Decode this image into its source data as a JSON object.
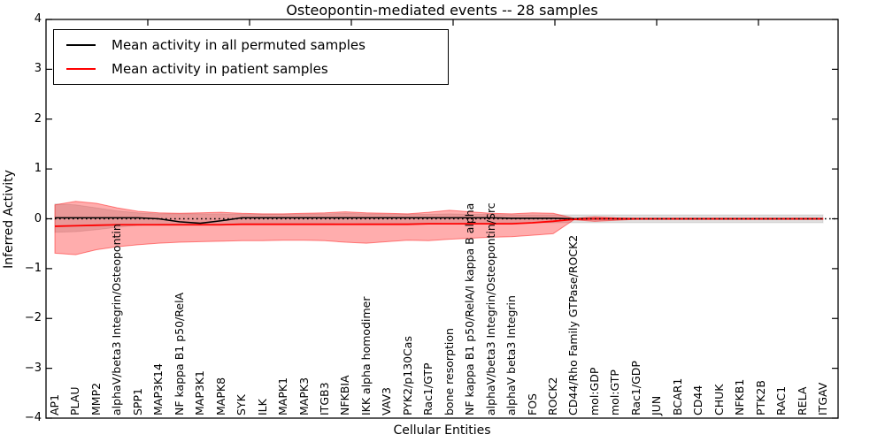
{
  "chart_data": {
    "type": "line",
    "title": "Osteopontin-mediated events -- 28 samples",
    "xlabel": "Cellular Entities",
    "ylabel": "Inferred Activity",
    "ylim": [
      -4,
      4
    ],
    "ytick_labels": [
      "4",
      "3",
      "2",
      "1",
      "0",
      "−1",
      "−2",
      "−3",
      "−4"
    ],
    "yticks": [
      4,
      3,
      2,
      1,
      0,
      -1,
      -2,
      -3,
      -4
    ],
    "grid": false,
    "legend_position": "upper left",
    "categories": [
      "AP1",
      "PLAU",
      "MMP2",
      "alphaV/beta3 Integrin/Osteopontin",
      "SPP1",
      "MAP3K14",
      "NF kappa B1 p50/RelA",
      "MAP3K1",
      "MAPK8",
      "SYK",
      "ILK",
      "MAPK1",
      "MAPK3",
      "ITGB3",
      "NFKBIA",
      "IKK alpha homodimer",
      "VAV3",
      "PYK2/p130Cas",
      "Rac1/GTP",
      "bone resorption",
      "NF kappa B1 p50/RelA/I kappa B alpha",
      "alphaV/beta3 Integrin/Osteopontin/Src",
      "alphaV beta3 Integrin",
      "FOS",
      "ROCK2",
      "CD44/Rho Family GTPase/ROCK2",
      "mol:GDP",
      "mol:GTP",
      "Rac1/GDP",
      "JUN",
      "BCAR1",
      "CD44",
      "CHUK",
      "NFKB1",
      "PTK2B",
      "RAC1",
      "RELA",
      "ITGAV"
    ],
    "series": [
      {
        "name": "Mean activity in all permuted samples",
        "color": "#000000",
        "values": [
          0.02,
          0.02,
          0.02,
          0.02,
          0.02,
          0.0,
          -0.06,
          -0.09,
          -0.04,
          0.02,
          0.02,
          0.02,
          0.02,
          0.02,
          0.02,
          0.02,
          0.02,
          0.02,
          0.02,
          0.02,
          0.02,
          0.02,
          0.01,
          0.01,
          0.01,
          0.0,
          0.0,
          0.0,
          0.0,
          0.0,
          0.0,
          0.0,
          0.0,
          0.0,
          0.0,
          0.0,
          0.0,
          0.0
        ]
      },
      {
        "name": "Mean activity in patient samples",
        "color": "#ff0000",
        "values": [
          -0.15,
          -0.14,
          -0.13,
          -0.12,
          -0.12,
          -0.12,
          -0.12,
          -0.12,
          -0.12,
          -0.11,
          -0.11,
          -0.11,
          -0.11,
          -0.11,
          -0.11,
          -0.11,
          -0.11,
          -0.11,
          -0.1,
          -0.1,
          -0.1,
          -0.1,
          -0.1,
          -0.08,
          -0.05,
          -0.01,
          0.0,
          0.0,
          0.0,
          0.0,
          0.0,
          0.0,
          0.0,
          0.0,
          0.0,
          0.0,
          0.0,
          0.0
        ]
      }
    ],
    "bands": [
      {
        "name": "permuted-samples-range",
        "fill": "rgba(0,0,0,0.12)",
        "edge": "rgba(0,0,0,0.10)",
        "upper": [
          0.3,
          0.28,
          0.22,
          0.16,
          0.12,
          0.1,
          0.1,
          0.1,
          0.1,
          0.09,
          0.09,
          0.09,
          0.09,
          0.1,
          0.11,
          0.1,
          0.09,
          0.09,
          0.09,
          0.1,
          0.09,
          0.09,
          0.08,
          0.08,
          0.08,
          0.08,
          0.08,
          0.08,
          0.08,
          0.08,
          0.08,
          0.08,
          0.08,
          0.08,
          0.08,
          0.08,
          0.08,
          0.08
        ],
        "lower": [
          -0.27,
          -0.26,
          -0.22,
          -0.17,
          -0.13,
          -0.11,
          -0.11,
          -0.12,
          -0.11,
          -0.1,
          -0.1,
          -0.1,
          -0.1,
          -0.1,
          -0.11,
          -0.1,
          -0.1,
          -0.09,
          -0.09,
          -0.1,
          -0.09,
          -0.09,
          -0.08,
          -0.08,
          -0.08,
          -0.08,
          -0.08,
          -0.08,
          -0.08,
          -0.08,
          -0.08,
          -0.08,
          -0.08,
          -0.08,
          -0.08,
          -0.08,
          -0.08,
          -0.08
        ]
      },
      {
        "name": "patient-samples-range",
        "fill": "rgba(255,0,0,0.32)",
        "edge": "rgba(255,0,0,0.45)",
        "upper": [
          0.28,
          0.35,
          0.31,
          0.22,
          0.15,
          0.12,
          0.11,
          0.12,
          0.13,
          0.11,
          0.1,
          0.1,
          0.11,
          0.12,
          0.14,
          0.12,
          0.11,
          0.1,
          0.13,
          0.17,
          0.14,
          0.11,
          0.1,
          0.12,
          0.11,
          0.01,
          0.04,
          0.02,
          0.01,
          0.01,
          0.01,
          0.01,
          0.01,
          0.01,
          0.01,
          0.01,
          0.01,
          0.01
        ],
        "lower": [
          -0.69,
          -0.72,
          -0.62,
          -0.56,
          -0.52,
          -0.49,
          -0.47,
          -0.46,
          -0.45,
          -0.44,
          -0.44,
          -0.43,
          -0.43,
          -0.44,
          -0.47,
          -0.49,
          -0.46,
          -0.43,
          -0.44,
          -0.41,
          -0.39,
          -0.37,
          -0.36,
          -0.33,
          -0.3,
          -0.02,
          -0.05,
          -0.03,
          -0.01,
          -0.01,
          -0.01,
          -0.01,
          -0.01,
          -0.01,
          -0.01,
          -0.01,
          -0.01,
          -0.01
        ]
      }
    ],
    "zero_line": 0
  }
}
